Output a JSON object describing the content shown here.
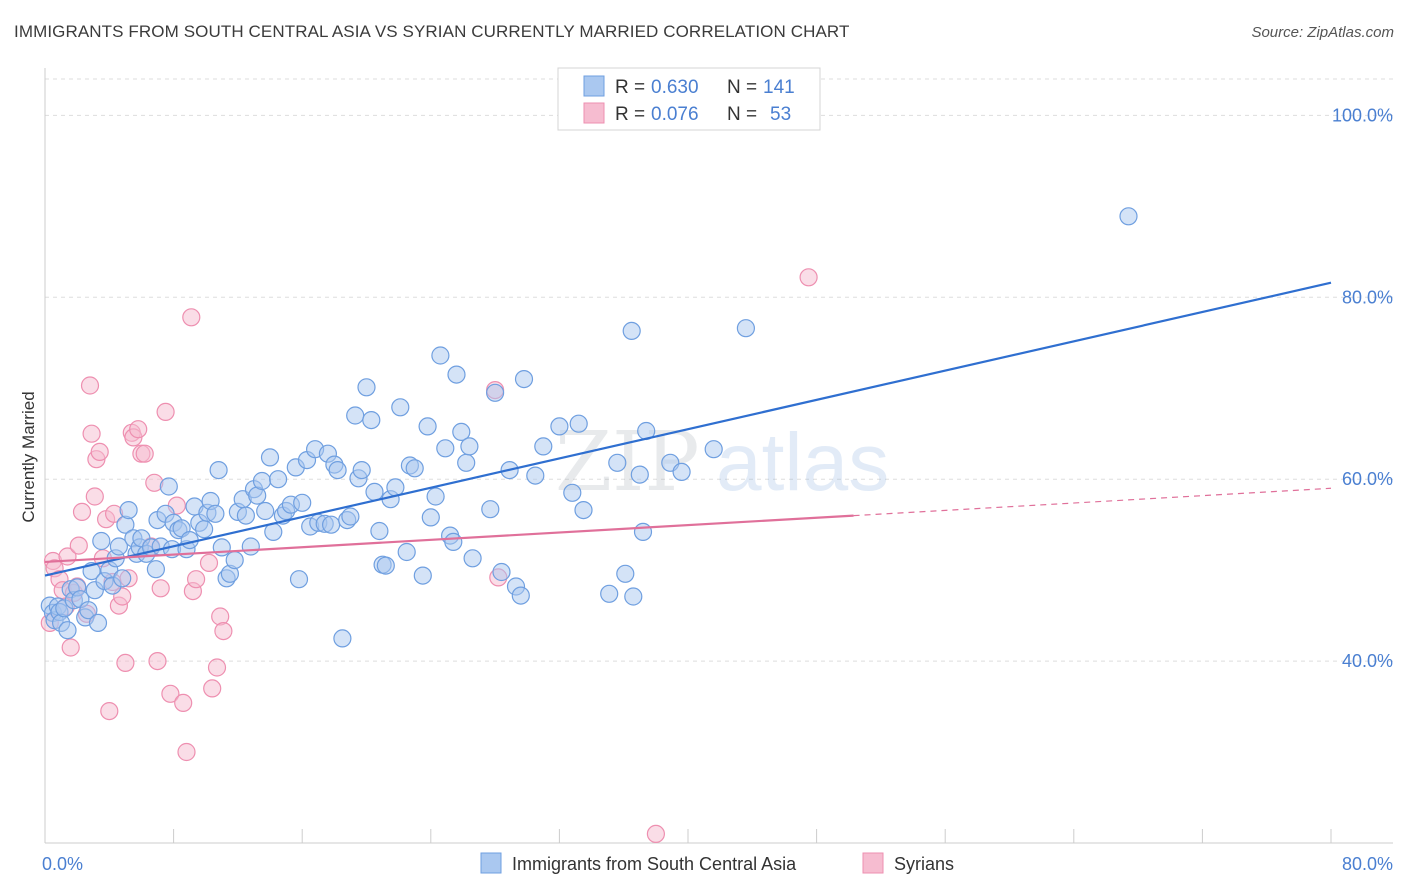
{
  "title": "IMMIGRANTS FROM SOUTH CENTRAL ASIA VS SYRIAN CURRENTLY MARRIED CORRELATION CHART",
  "source": "Source: ZipAtlas.com",
  "watermark": {
    "part1": "ZIP",
    "part2": "atlas"
  },
  "colors": {
    "blue_fill": "#aac8f0",
    "blue_stroke": "#6f9fe0",
    "blue_line": "#2f6fd0",
    "pink_fill": "#f6bcd0",
    "pink_stroke": "#ee8fb0",
    "pink_line": "#e0709a",
    "grid": "#dddddd",
    "tick_text": "#4a7fd1"
  },
  "legend_top": [
    {
      "r_label": "R =",
      "r_value": "0.630",
      "n_label": "N =",
      "n_value": "141"
    },
    {
      "r_label": "R =",
      "r_value": "0.076",
      "n_label": "N =",
      "n_value": "53"
    }
  ],
  "chart_data": {
    "type": "scatter",
    "title": "IMMIGRANTS FROM SOUTH CENTRAL ASIA VS SYRIAN CURRENTLY MARRIED CORRELATION CHART",
    "xlabel": "",
    "ylabel": "Currently Married",
    "xlim": [
      0,
      80
    ],
    "ylim": [
      20,
      104
    ],
    "x_tick_labels": [
      {
        "value": 0,
        "label": "0.0%"
      },
      {
        "value": 80,
        "label": "80.0%"
      }
    ],
    "y_tick_labels": [
      {
        "value": 100,
        "label": "100.0%"
      },
      {
        "value": 80,
        "label": "80.0%"
      },
      {
        "value": 60,
        "label": "60.0%"
      },
      {
        "value": 40,
        "label": "40.0%"
      }
    ],
    "grid": true,
    "legend_position": "top-center",
    "series": [
      {
        "name": "Immigrants from South Central Asia",
        "color": "#aac8f0",
        "trend": {
          "x": [
            0,
            80
          ],
          "y": [
            49.4,
            81.6
          ],
          "dashed_from": null
        },
        "points": [
          [
            0.3,
            46.1
          ],
          [
            0.5,
            45.3
          ],
          [
            0.6,
            44.5
          ],
          [
            0.8,
            46.0
          ],
          [
            0.9,
            45.4
          ],
          [
            1.0,
            44.2
          ],
          [
            1.2,
            45.8
          ],
          [
            1.4,
            43.4
          ],
          [
            1.6,
            47.9
          ],
          [
            1.8,
            46.7
          ],
          [
            2.0,
            48.1
          ],
          [
            2.2,
            46.8
          ],
          [
            2.5,
            44.8
          ],
          [
            2.7,
            45.6
          ],
          [
            2.9,
            49.9
          ],
          [
            3.1,
            47.8
          ],
          [
            3.3,
            44.2
          ],
          [
            3.5,
            53.2
          ],
          [
            3.7,
            48.8
          ],
          [
            4.0,
            50.0
          ],
          [
            4.2,
            48.3
          ],
          [
            4.4,
            51.3
          ],
          [
            4.6,
            52.6
          ],
          [
            4.8,
            49.1
          ],
          [
            5.0,
            55.0
          ],
          [
            5.2,
            56.6
          ],
          [
            5.5,
            53.5
          ],
          [
            5.7,
            51.8
          ],
          [
            5.9,
            52.5
          ],
          [
            6.0,
            53.5
          ],
          [
            6.3,
            51.8
          ],
          [
            6.6,
            52.5
          ],
          [
            6.9,
            50.1
          ],
          [
            7.0,
            55.5
          ],
          [
            7.2,
            52.6
          ],
          [
            7.5,
            56.2
          ],
          [
            7.7,
            59.2
          ],
          [
            7.9,
            52.3
          ],
          [
            8.0,
            55.2
          ],
          [
            8.3,
            54.4
          ],
          [
            8.5,
            54.6
          ],
          [
            8.8,
            52.3
          ],
          [
            9.0,
            53.3
          ],
          [
            9.3,
            57.0
          ],
          [
            9.6,
            55.2
          ],
          [
            9.9,
            54.5
          ],
          [
            10.1,
            56.3
          ],
          [
            10.3,
            57.6
          ],
          [
            10.6,
            56.2
          ],
          [
            10.8,
            61.0
          ],
          [
            11.0,
            52.5
          ],
          [
            11.3,
            49.1
          ],
          [
            11.5,
            49.6
          ],
          [
            11.8,
            51.1
          ],
          [
            12.0,
            56.4
          ],
          [
            12.3,
            57.8
          ],
          [
            12.5,
            56.0
          ],
          [
            12.8,
            52.6
          ],
          [
            13.0,
            58.9
          ],
          [
            13.2,
            58.2
          ],
          [
            13.5,
            59.8
          ],
          [
            13.7,
            56.5
          ],
          [
            14.0,
            62.4
          ],
          [
            14.2,
            54.2
          ],
          [
            14.5,
            60.0
          ],
          [
            14.8,
            56.0
          ],
          [
            15.0,
            56.5
          ],
          [
            15.3,
            57.2
          ],
          [
            15.6,
            61.3
          ],
          [
            15.8,
            49.0
          ],
          [
            16.0,
            57.4
          ],
          [
            16.3,
            62.1
          ],
          [
            16.5,
            54.8
          ],
          [
            16.8,
            63.3
          ],
          [
            17.0,
            55.2
          ],
          [
            17.4,
            55.1
          ],
          [
            17.6,
            62.8
          ],
          [
            17.8,
            55.0
          ],
          [
            18.0,
            61.6
          ],
          [
            18.2,
            61.0
          ],
          [
            18.5,
            42.5
          ],
          [
            18.8,
            55.5
          ],
          [
            19.0,
            55.9
          ],
          [
            19.3,
            67.0
          ],
          [
            19.5,
            60.1
          ],
          [
            19.7,
            61.0
          ],
          [
            20.0,
            70.1
          ],
          [
            20.3,
            66.5
          ],
          [
            20.5,
            58.6
          ],
          [
            20.8,
            54.3
          ],
          [
            21.0,
            50.6
          ],
          [
            21.2,
            50.5
          ],
          [
            21.5,
            57.8
          ],
          [
            21.8,
            59.1
          ],
          [
            22.1,
            67.9
          ],
          [
            22.5,
            52.0
          ],
          [
            22.7,
            61.5
          ],
          [
            23.0,
            61.2
          ],
          [
            23.5,
            49.4
          ],
          [
            23.8,
            65.8
          ],
          [
            24.0,
            55.8
          ],
          [
            24.3,
            58.1
          ],
          [
            24.6,
            73.6
          ],
          [
            24.9,
            63.4
          ],
          [
            25.2,
            53.8
          ],
          [
            25.4,
            53.1
          ],
          [
            25.6,
            71.5
          ],
          [
            25.9,
            65.2
          ],
          [
            26.2,
            61.8
          ],
          [
            26.4,
            63.6
          ],
          [
            26.6,
            51.3
          ],
          [
            27.7,
            56.7
          ],
          [
            28.0,
            69.5
          ],
          [
            28.4,
            49.8
          ],
          [
            28.9,
            61.0
          ],
          [
            29.3,
            48.2
          ],
          [
            29.6,
            47.2
          ],
          [
            29.8,
            71.0
          ],
          [
            30.5,
            60.4
          ],
          [
            31.0,
            63.6
          ],
          [
            32.0,
            65.8
          ],
          [
            32.8,
            58.5
          ],
          [
            33.2,
            66.1
          ],
          [
            33.5,
            56.6
          ],
          [
            35.1,
            47.4
          ],
          [
            35.6,
            61.8
          ],
          [
            36.1,
            49.6
          ],
          [
            36.5,
            76.3
          ],
          [
            36.6,
            47.1
          ],
          [
            37.0,
            60.5
          ],
          [
            37.2,
            54.2
          ],
          [
            37.4,
            65.3
          ],
          [
            38.9,
            61.8
          ],
          [
            39.6,
            60.8
          ],
          [
            41.6,
            63.3
          ],
          [
            43.6,
            76.6
          ],
          [
            67.4,
            88.9
          ]
        ]
      },
      {
        "name": "Syrians",
        "color": "#f6bcd0",
        "trend": {
          "x": [
            0,
            80
          ],
          "y": [
            50.9,
            59.0
          ],
          "dashed_from": 50.3
        },
        "points": [
          [
            0.3,
            44.2
          ],
          [
            0.5,
            51.0
          ],
          [
            0.6,
            50.2
          ],
          [
            0.9,
            49.0
          ],
          [
            1.1,
            47.8
          ],
          [
            1.3,
            46.0
          ],
          [
            1.4,
            51.5
          ],
          [
            1.6,
            41.5
          ],
          [
            1.8,
            47.5
          ],
          [
            2.0,
            48.2
          ],
          [
            2.1,
            52.7
          ],
          [
            2.3,
            56.4
          ],
          [
            2.6,
            45.2
          ],
          [
            2.8,
            70.3
          ],
          [
            2.9,
            65.0
          ],
          [
            3.1,
            58.1
          ],
          [
            3.2,
            62.2
          ],
          [
            3.4,
            63.0
          ],
          [
            3.6,
            51.3
          ],
          [
            3.8,
            55.6
          ],
          [
            4.2,
            48.7
          ],
          [
            4.3,
            56.2
          ],
          [
            4.6,
            46.1
          ],
          [
            4.8,
            47.1
          ],
          [
            5.0,
            39.8
          ],
          [
            5.2,
            49.1
          ],
          [
            5.4,
            65.1
          ],
          [
            5.5,
            64.6
          ],
          [
            5.8,
            65.5
          ],
          [
            6.0,
            62.8
          ],
          [
            6.2,
            62.8
          ],
          [
            6.6,
            52.6
          ],
          [
            6.8,
            59.6
          ],
          [
            7.0,
            40.0
          ],
          [
            7.2,
            48.0
          ],
          [
            7.5,
            67.4
          ],
          [
            7.8,
            36.4
          ],
          [
            8.2,
            57.1
          ],
          [
            8.6,
            35.4
          ],
          [
            8.8,
            30.0
          ],
          [
            9.1,
            77.8
          ],
          [
            9.2,
            47.7
          ],
          [
            9.4,
            49.0
          ],
          [
            10.2,
            50.8
          ],
          [
            10.4,
            37.0
          ],
          [
            10.7,
            39.3
          ],
          [
            10.9,
            44.9
          ],
          [
            11.1,
            43.3
          ],
          [
            28.0,
            69.8
          ],
          [
            28.2,
            49.2
          ],
          [
            4.0,
            34.5
          ],
          [
            47.5,
            82.2
          ],
          [
            38.0,
            21.0
          ]
        ]
      }
    ]
  },
  "bottom_legend": [
    {
      "label": "Immigrants from South Central Asia"
    },
    {
      "label": "Syrians"
    }
  ]
}
